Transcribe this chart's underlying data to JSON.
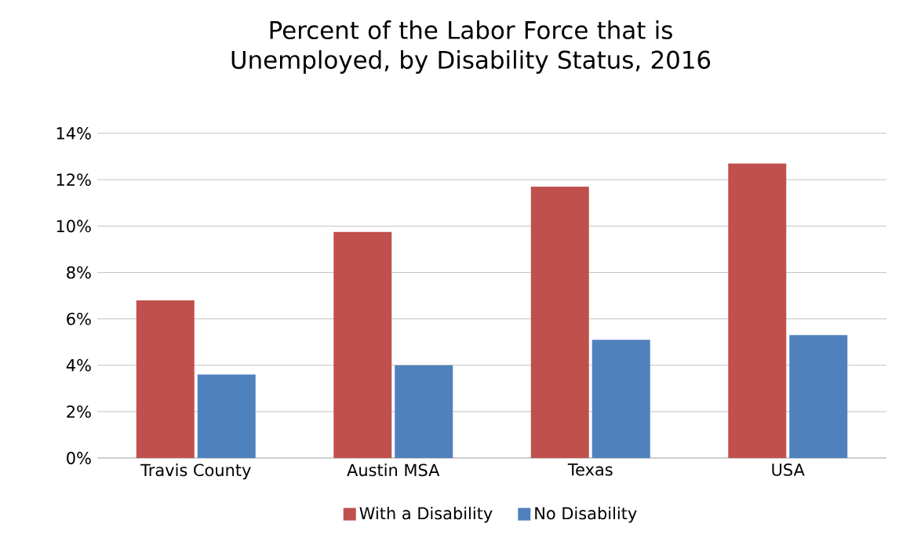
{
  "chart_data": {
    "type": "bar",
    "title": "Percent of the Labor Force that is Unemployed, by Disability Status, 2016",
    "categories": [
      "Travis County",
      "Austin MSA",
      "Texas",
      "USA"
    ],
    "series": [
      {
        "name": "With a Disability",
        "color": "#c0504d",
        "values": [
          6.8,
          9.75,
          11.7,
          12.7
        ]
      },
      {
        "name": "No Disability",
        "color": "#4f81bd",
        "values": [
          3.6,
          4.0,
          5.1,
          5.3
        ]
      }
    ],
    "ylim": [
      0,
      14
    ],
    "yticks": [
      {
        "value": 0,
        "label": "0%"
      },
      {
        "value": 2,
        "label": "2%"
      },
      {
        "value": 4,
        "label": "4%"
      },
      {
        "value": 6,
        "label": "6%"
      },
      {
        "value": 8,
        "label": "8%"
      },
      {
        "value": 10,
        "label": "10%"
      },
      {
        "value": 12,
        "label": "12%"
      },
      {
        "value": 14,
        "label": "14%"
      }
    ],
    "grid": "y",
    "legend": "bottom"
  }
}
